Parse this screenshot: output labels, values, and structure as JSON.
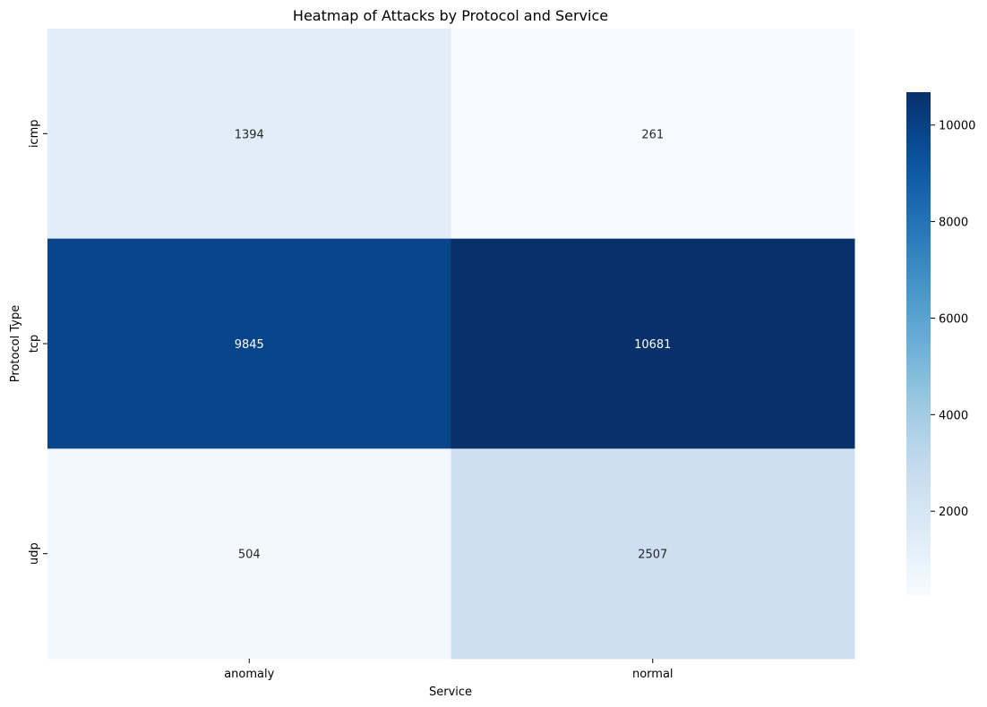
{
  "chart_data": {
    "type": "heatmap",
    "title": "Heatmap of Attacks by Protocol and Service",
    "xlabel": "Service",
    "ylabel": "Protocol Type",
    "x_categories": [
      "anomaly",
      "normal"
    ],
    "y_categories": [
      "icmp",
      "tcp",
      "udp"
    ],
    "values": [
      [
        1394,
        261
      ],
      [
        9845,
        10681
      ],
      [
        504,
        2507
      ]
    ],
    "colormap": "Blues",
    "color_range": [
      261,
      10681
    ],
    "colorbar_ticks": [
      2000,
      4000,
      6000,
      8000,
      10000
    ],
    "colorbar_tick_labels": [
      "2000",
      "4000",
      "6000",
      "8000",
      "10000"
    ],
    "annotations": true
  }
}
